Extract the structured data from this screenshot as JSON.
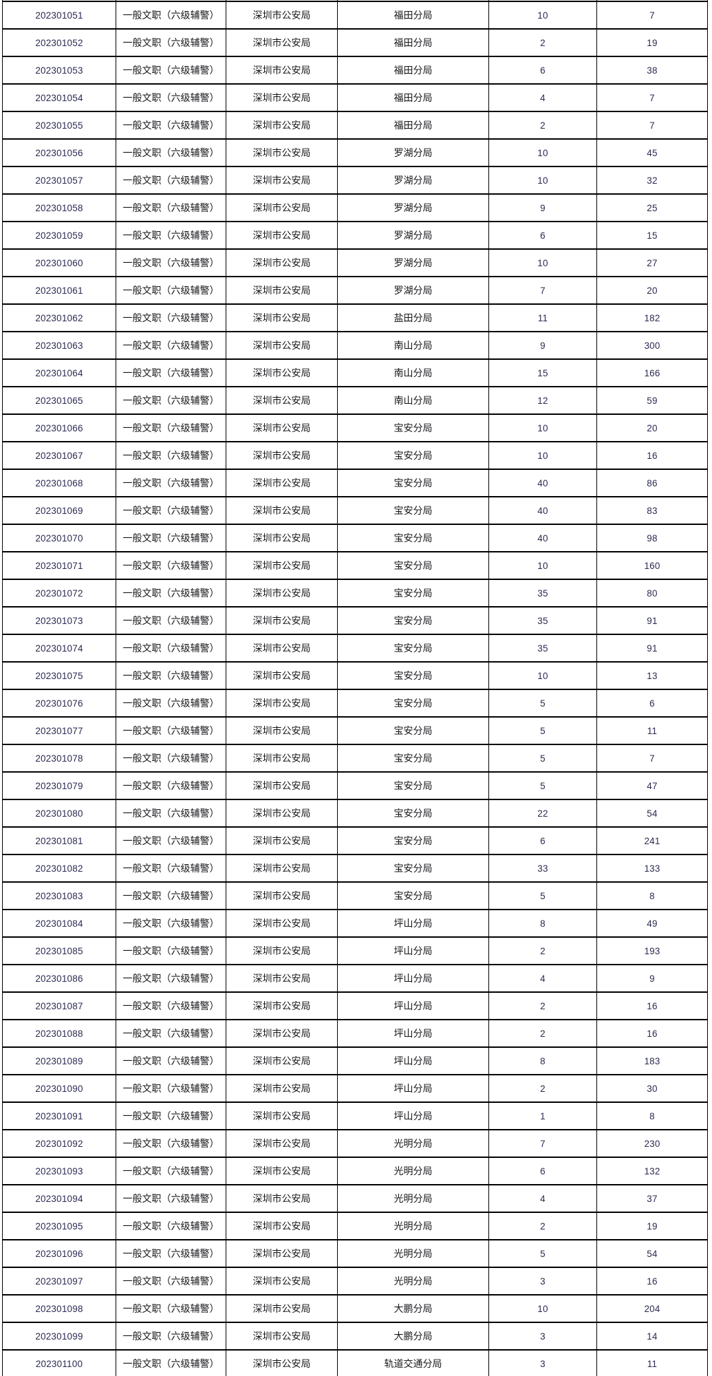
{
  "colors": {
    "text": "#18181c",
    "number": "#2a2a52",
    "border": "#000000",
    "page_bg": "#ffffff"
  },
  "table": {
    "rows": [
      {
        "code": "202301051",
        "position": "一般文职（六级辅警）",
        "agency": "深圳市公安局",
        "department": "福田分局",
        "recruit": "10",
        "applicants": "7"
      },
      {
        "code": "202301052",
        "position": "一般文职（六级辅警）",
        "agency": "深圳市公安局",
        "department": "福田分局",
        "recruit": "2",
        "applicants": "19"
      },
      {
        "code": "202301053",
        "position": "一般文职（六级辅警）",
        "agency": "深圳市公安局",
        "department": "福田分局",
        "recruit": "6",
        "applicants": "38"
      },
      {
        "code": "202301054",
        "position": "一般文职（六级辅警）",
        "agency": "深圳市公安局",
        "department": "福田分局",
        "recruit": "4",
        "applicants": "7"
      },
      {
        "code": "202301055",
        "position": "一般文职（六级辅警）",
        "agency": "深圳市公安局",
        "department": "福田分局",
        "recruit": "2",
        "applicants": "7"
      },
      {
        "code": "202301056",
        "position": "一般文职（六级辅警）",
        "agency": "深圳市公安局",
        "department": "罗湖分局",
        "recruit": "10",
        "applicants": "45"
      },
      {
        "code": "202301057",
        "position": "一般文职（六级辅警）",
        "agency": "深圳市公安局",
        "department": "罗湖分局",
        "recruit": "10",
        "applicants": "32"
      },
      {
        "code": "202301058",
        "position": "一般文职（六级辅警）",
        "agency": "深圳市公安局",
        "department": "罗湖分局",
        "recruit": "9",
        "applicants": "25"
      },
      {
        "code": "202301059",
        "position": "一般文职（六级辅警）",
        "agency": "深圳市公安局",
        "department": "罗湖分局",
        "recruit": "6",
        "applicants": "15"
      },
      {
        "code": "202301060",
        "position": "一般文职（六级辅警）",
        "agency": "深圳市公安局",
        "department": "罗湖分局",
        "recruit": "10",
        "applicants": "27"
      },
      {
        "code": "202301061",
        "position": "一般文职（六级辅警）",
        "agency": "深圳市公安局",
        "department": "罗湖分局",
        "recruit": "7",
        "applicants": "20"
      },
      {
        "code": "202301062",
        "position": "一般文职（六级辅警）",
        "agency": "深圳市公安局",
        "department": "盐田分局",
        "recruit": "11",
        "applicants": "182"
      },
      {
        "code": "202301063",
        "position": "一般文职（六级辅警）",
        "agency": "深圳市公安局",
        "department": "南山分局",
        "recruit": "9",
        "applicants": "300"
      },
      {
        "code": "202301064",
        "position": "一般文职（六级辅警）",
        "agency": "深圳市公安局",
        "department": "南山分局",
        "recruit": "15",
        "applicants": "166"
      },
      {
        "code": "202301065",
        "position": "一般文职（六级辅警）",
        "agency": "深圳市公安局",
        "department": "南山分局",
        "recruit": "12",
        "applicants": "59"
      },
      {
        "code": "202301066",
        "position": "一般文职（六级辅警）",
        "agency": "深圳市公安局",
        "department": "宝安分局",
        "recruit": "10",
        "applicants": "20"
      },
      {
        "code": "202301067",
        "position": "一般文职（六级辅警）",
        "agency": "深圳市公安局",
        "department": "宝安分局",
        "recruit": "10",
        "applicants": "16"
      },
      {
        "code": "202301068",
        "position": "一般文职（六级辅警）",
        "agency": "深圳市公安局",
        "department": "宝安分局",
        "recruit": "40",
        "applicants": "86"
      },
      {
        "code": "202301069",
        "position": "一般文职（六级辅警）",
        "agency": "深圳市公安局",
        "department": "宝安分局",
        "recruit": "40",
        "applicants": "83"
      },
      {
        "code": "202301070",
        "position": "一般文职（六级辅警）",
        "agency": "深圳市公安局",
        "department": "宝安分局",
        "recruit": "40",
        "applicants": "98"
      },
      {
        "code": "202301071",
        "position": "一般文职（六级辅警）",
        "agency": "深圳市公安局",
        "department": "宝安分局",
        "recruit": "10",
        "applicants": "160"
      },
      {
        "code": "202301072",
        "position": "一般文职（六级辅警）",
        "agency": "深圳市公安局",
        "department": "宝安分局",
        "recruit": "35",
        "applicants": "80"
      },
      {
        "code": "202301073",
        "position": "一般文职（六级辅警）",
        "agency": "深圳市公安局",
        "department": "宝安分局",
        "recruit": "35",
        "applicants": "91"
      },
      {
        "code": "202301074",
        "position": "一般文职（六级辅警）",
        "agency": "深圳市公安局",
        "department": "宝安分局",
        "recruit": "35",
        "applicants": "91"
      },
      {
        "code": "202301075",
        "position": "一般文职（六级辅警）",
        "agency": "深圳市公安局",
        "department": "宝安分局",
        "recruit": "10",
        "applicants": "13"
      },
      {
        "code": "202301076",
        "position": "一般文职（六级辅警）",
        "agency": "深圳市公安局",
        "department": "宝安分局",
        "recruit": "5",
        "applicants": "6"
      },
      {
        "code": "202301077",
        "position": "一般文职（六级辅警）",
        "agency": "深圳市公安局",
        "department": "宝安分局",
        "recruit": "5",
        "applicants": "11"
      },
      {
        "code": "202301078",
        "position": "一般文职（六级辅警）",
        "agency": "深圳市公安局",
        "department": "宝安分局",
        "recruit": "5",
        "applicants": "7"
      },
      {
        "code": "202301079",
        "position": "一般文职（六级辅警）",
        "agency": "深圳市公安局",
        "department": "宝安分局",
        "recruit": "5",
        "applicants": "47"
      },
      {
        "code": "202301080",
        "position": "一般文职（六级辅警）",
        "agency": "深圳市公安局",
        "department": "宝安分局",
        "recruit": "22",
        "applicants": "54"
      },
      {
        "code": "202301081",
        "position": "一般文职（六级辅警）",
        "agency": "深圳市公安局",
        "department": "宝安分局",
        "recruit": "6",
        "applicants": "241"
      },
      {
        "code": "202301082",
        "position": "一般文职（六级辅警）",
        "agency": "深圳市公安局",
        "department": "宝安分局",
        "recruit": "33",
        "applicants": "133"
      },
      {
        "code": "202301083",
        "position": "一般文职（六级辅警）",
        "agency": "深圳市公安局",
        "department": "宝安分局",
        "recruit": "5",
        "applicants": "8"
      },
      {
        "code": "202301084",
        "position": "一般文职（六级辅警）",
        "agency": "深圳市公安局",
        "department": "坪山分局",
        "recruit": "8",
        "applicants": "49"
      },
      {
        "code": "202301085",
        "position": "一般文职（六级辅警）",
        "agency": "深圳市公安局",
        "department": "坪山分局",
        "recruit": "2",
        "applicants": "193"
      },
      {
        "code": "202301086",
        "position": "一般文职（六级辅警）",
        "agency": "深圳市公安局",
        "department": "坪山分局",
        "recruit": "4",
        "applicants": "9"
      },
      {
        "code": "202301087",
        "position": "一般文职（六级辅警）",
        "agency": "深圳市公安局",
        "department": "坪山分局",
        "recruit": "2",
        "applicants": "16"
      },
      {
        "code": "202301088",
        "position": "一般文职（六级辅警）",
        "agency": "深圳市公安局",
        "department": "坪山分局",
        "recruit": "2",
        "applicants": "16"
      },
      {
        "code": "202301089",
        "position": "一般文职（六级辅警）",
        "agency": "深圳市公安局",
        "department": "坪山分局",
        "recruit": "8",
        "applicants": "183"
      },
      {
        "code": "202301090",
        "position": "一般文职（六级辅警）",
        "agency": "深圳市公安局",
        "department": "坪山分局",
        "recruit": "2",
        "applicants": "30"
      },
      {
        "code": "202301091",
        "position": "一般文职（六级辅警）",
        "agency": "深圳市公安局",
        "department": "坪山分局",
        "recruit": "1",
        "applicants": "8"
      },
      {
        "code": "202301092",
        "position": "一般文职（六级辅警）",
        "agency": "深圳市公安局",
        "department": "光明分局",
        "recruit": "7",
        "applicants": "230"
      },
      {
        "code": "202301093",
        "position": "一般文职（六级辅警）",
        "agency": "深圳市公安局",
        "department": "光明分局",
        "recruit": "6",
        "applicants": "132"
      },
      {
        "code": "202301094",
        "position": "一般文职（六级辅警）",
        "agency": "深圳市公安局",
        "department": "光明分局",
        "recruit": "4",
        "applicants": "37"
      },
      {
        "code": "202301095",
        "position": "一般文职（六级辅警）",
        "agency": "深圳市公安局",
        "department": "光明分局",
        "recruit": "2",
        "applicants": "19"
      },
      {
        "code": "202301096",
        "position": "一般文职（六级辅警）",
        "agency": "深圳市公安局",
        "department": "光明分局",
        "recruit": "5",
        "applicants": "54"
      },
      {
        "code": "202301097",
        "position": "一般文职（六级辅警）",
        "agency": "深圳市公安局",
        "department": "光明分局",
        "recruit": "3",
        "applicants": "16"
      },
      {
        "code": "202301098",
        "position": "一般文职（六级辅警）",
        "agency": "深圳市公安局",
        "department": "大鹏分局",
        "recruit": "10",
        "applicants": "204"
      },
      {
        "code": "202301099",
        "position": "一般文职（六级辅警）",
        "agency": "深圳市公安局",
        "department": "大鹏分局",
        "recruit": "3",
        "applicants": "14"
      },
      {
        "code": "202301100",
        "position": "一般文职（六级辅警）",
        "agency": "深圳市公安局",
        "department": "轨道交通分局",
        "recruit": "3",
        "applicants": "11"
      }
    ]
  }
}
